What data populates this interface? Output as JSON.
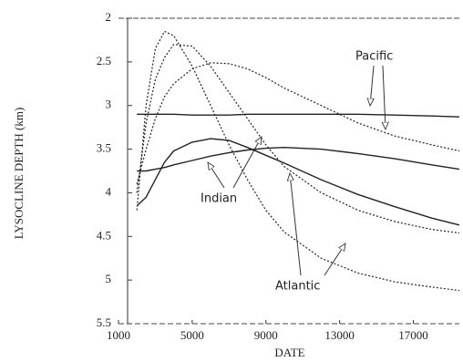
{
  "chart_data": {
    "type": "line",
    "y_label": "LYSOCLINE DEPTH (km)",
    "x_label": "DATE",
    "annotations": [
      "Pacific",
      "Indian",
      "Atlantic"
    ],
    "x": [
      2000,
      2500,
      3000,
      3500,
      4000,
      5000,
      6000,
      7000,
      8000,
      9000,
      10000,
      12000,
      14000,
      16000,
      18000,
      19500
    ],
    "series": [
      {
        "color": "#222222",
        "line_style": "solid",
        "values": [
          3.1,
          3.1,
          3.1,
          3.1,
          3.1,
          3.11,
          3.11,
          3.11,
          3.1,
          3.1,
          3.1,
          3.1,
          3.1,
          3.11,
          3.12,
          3.13
        ]
      },
      {
        "color": "#222222",
        "line_style": "solid",
        "values": [
          4.15,
          4.05,
          3.85,
          3.65,
          3.52,
          3.42,
          3.38,
          3.4,
          3.48,
          3.57,
          3.66,
          3.85,
          4.02,
          4.16,
          4.29,
          4.37
        ]
      },
      {
        "color": "#222222",
        "line_style": "solid",
        "values": [
          3.75,
          3.75,
          3.73,
          3.71,
          3.68,
          3.63,
          3.58,
          3.54,
          3.51,
          3.49,
          3.48,
          3.5,
          3.55,
          3.61,
          3.68,
          3.73
        ]
      },
      {
        "color": "#222222",
        "line_style": "dotted",
        "values": [
          4.2,
          3.0,
          2.35,
          2.15,
          2.2,
          2.55,
          3.0,
          3.45,
          3.85,
          4.2,
          4.45,
          4.75,
          4.92,
          5.02,
          5.08,
          5.12
        ]
      },
      {
        "color": "#222222",
        "line_style": "dotted",
        "values": [
          4.0,
          3.2,
          2.7,
          2.45,
          2.3,
          2.32,
          2.55,
          2.85,
          3.15,
          3.45,
          3.7,
          4.0,
          4.2,
          4.33,
          4.42,
          4.46
        ]
      },
      {
        "color": "#222222",
        "line_style": "dotted",
        "values": [
          3.9,
          3.5,
          3.15,
          2.9,
          2.75,
          2.58,
          2.51,
          2.52,
          2.58,
          2.68,
          2.8,
          3.0,
          3.2,
          3.35,
          3.45,
          3.52
        ]
      }
    ],
    "xlim": [
      1000,
      19500
    ],
    "xticks": [
      1000,
      5000,
      9000,
      13000,
      17000
    ],
    "ylim": [
      2,
      5.5
    ],
    "yticks": [
      2,
      2.5,
      3,
      3.5,
      4,
      4.5,
      5,
      5.5
    ],
    "y_inverted": true
  }
}
